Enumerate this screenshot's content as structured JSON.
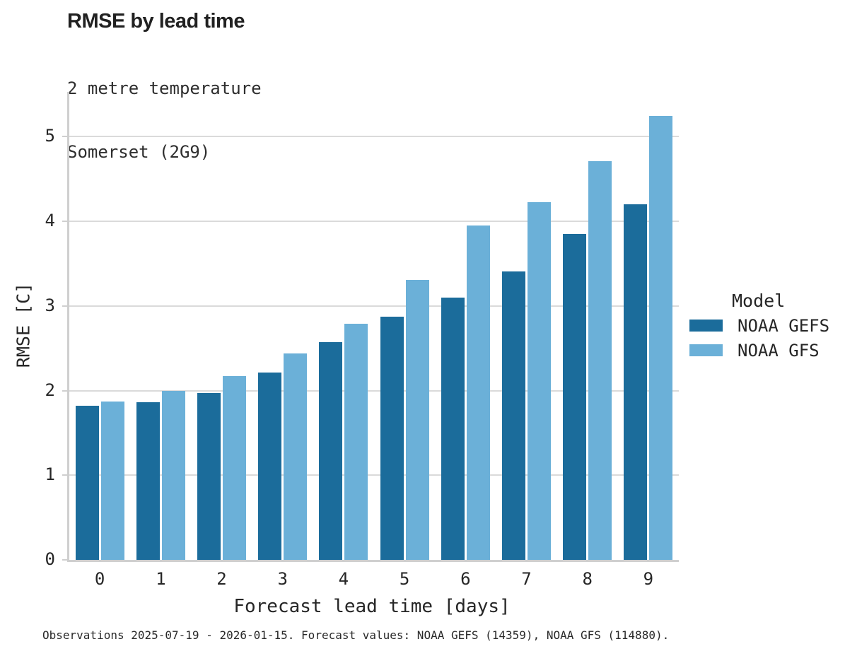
{
  "header": {
    "title": "RMSE by lead time",
    "subtitle_line1": "2 metre temperature",
    "subtitle_line2": "Somerset (2G9)"
  },
  "chart_data": {
    "type": "bar",
    "title": "RMSE by lead time",
    "subtitle": [
      "2 metre temperature",
      "Somerset (2G9)"
    ],
    "categories": [
      "0",
      "1",
      "2",
      "3",
      "4",
      "5",
      "6",
      "7",
      "8",
      "9"
    ],
    "series": [
      {
        "name": "NOAA GEFS",
        "color": "#1b6c9b",
        "values": [
          1.82,
          1.86,
          1.97,
          2.21,
          2.57,
          2.87,
          3.1,
          3.41,
          3.85,
          4.2
        ]
      },
      {
        "name": "NOAA GFS",
        "color": "#6bb0d8",
        "values": [
          1.87,
          2.0,
          2.17,
          2.44,
          2.79,
          3.31,
          3.95,
          4.23,
          4.71,
          5.25
        ]
      }
    ],
    "xlabel": "Forecast lead time [days]",
    "ylabel": "RMSE [C]",
    "ylim": [
      0,
      5.53
    ],
    "yticks": [
      0,
      1,
      2,
      3,
      4,
      5
    ],
    "grid": "horizontal",
    "legend_title": "Model",
    "legend_position": "right"
  },
  "legend": {
    "title": "Model",
    "entries": [
      {
        "label": "NOAA GEFS",
        "color": "#1b6c9b"
      },
      {
        "label": "NOAA GFS",
        "color": "#6bb0d8"
      }
    ]
  },
  "footnote": "Observations 2025-07-19 - 2026-01-15. Forecast values: NOAA GEFS (14359), NOAA GFS (114880)."
}
